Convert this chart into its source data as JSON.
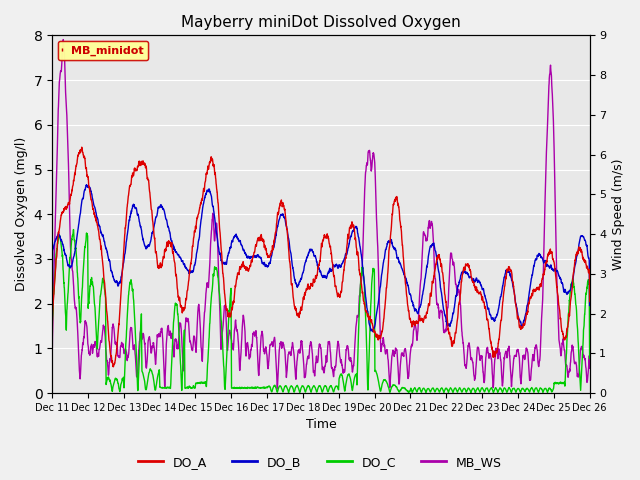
{
  "title": "Mayberry miniDot Dissolved Oxygen",
  "xlabel": "Time",
  "ylabel_left": "Dissolved Oxygen (mg/l)",
  "ylabel_right": "Wind Speed (m/s)",
  "ylim_left": [
    0.0,
    8.0
  ],
  "ylim_right": [
    0.0,
    9.0
  ],
  "yticks_left": [
    0.0,
    1.0,
    2.0,
    3.0,
    4.0,
    5.0,
    6.0,
    7.0,
    8.0
  ],
  "yticks_right": [
    0.0,
    1.0,
    2.0,
    3.0,
    4.0,
    5.0,
    6.0,
    7.0,
    8.0,
    9.0
  ],
  "xtick_labels": [
    "Dec 11",
    "Dec 12",
    "Dec 13",
    "Dec 14",
    "Dec 15",
    "Dec 16",
    "Dec 17",
    "Dec 18",
    "Dec 19",
    "Dec 20",
    "Dec 21",
    "Dec 22",
    "Dec 23",
    "Dec 24",
    "Dec 25",
    "Dec 26"
  ],
  "color_DO_A": "#dd0000",
  "color_DO_B": "#0000cc",
  "color_DO_C": "#00cc00",
  "color_MB_WS": "#aa00aa",
  "legend_label": "MB_minidot",
  "legend_bg": "#ffff99",
  "legend_border": "#cc0000",
  "background_gray": "#e8e8e8",
  "grid_color": "#ffffff",
  "linewidth": 1.0,
  "figsize": [
    6.4,
    4.8
  ],
  "dpi": 100
}
